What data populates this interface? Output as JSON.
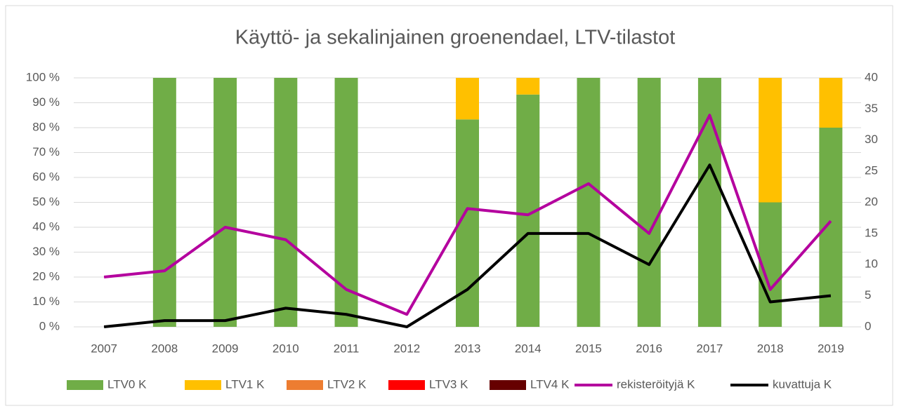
{
  "chart_data": {
    "type": "bar",
    "title": "Käyttö- ja sekalinjainen groenendael, LTV-tilastot",
    "categories": [
      "2007",
      "2008",
      "2009",
      "2010",
      "2011",
      "2012",
      "2013",
      "2014",
      "2015",
      "2016",
      "2017",
      "2018",
      "2019"
    ],
    "series": [
      {
        "name": "LTV0 K",
        "color": "#70ad47",
        "values": [
          0,
          100,
          100,
          100,
          100,
          0,
          83.3,
          93.3,
          100,
          100,
          100,
          50,
          80
        ]
      },
      {
        "name": "LTV1 K",
        "color": "#ffc000",
        "values": [
          0,
          0,
          0,
          0,
          0,
          0,
          16.7,
          6.7,
          0,
          0,
          0,
          50,
          20
        ]
      },
      {
        "name": "LTV2 K",
        "color": "#ed7d31",
        "values": [
          0,
          0,
          0,
          0,
          0,
          0,
          0,
          0,
          0,
          0,
          0,
          0,
          0
        ]
      },
      {
        "name": "LTV3 K",
        "color": "#ff0000",
        "values": [
          0,
          0,
          0,
          0,
          0,
          0,
          0,
          0,
          0,
          0,
          0,
          0,
          0
        ]
      },
      {
        "name": "LTV4 K",
        "color": "#660000",
        "values": [
          0,
          0,
          0,
          0,
          0,
          0,
          0,
          0,
          0,
          0,
          0,
          0,
          0
        ]
      },
      {
        "name": "rekisteröityjä K",
        "color": "#b4009e",
        "axis": "y2",
        "values": [
          8,
          9,
          16,
          14,
          6,
          2,
          19,
          18,
          23,
          15,
          34,
          6,
          17
        ]
      },
      {
        "name": "kuvattuja K",
        "color": "#000000",
        "axis": "y2",
        "values": [
          0,
          1,
          1,
          3,
          2,
          0,
          6,
          15,
          15,
          10,
          26,
          4,
          5
        ]
      }
    ],
    "ylim": [
      0,
      100
    ],
    "yticks": [
      {
        "value": 0,
        "label": "0 %"
      },
      {
        "value": 10,
        "label": "10 %"
      },
      {
        "value": 20,
        "label": "20 %"
      },
      {
        "value": 30,
        "label": "30 %"
      },
      {
        "value": 40,
        "label": "40 %"
      },
      {
        "value": 50,
        "label": "50 %"
      },
      {
        "value": 60,
        "label": "60 %"
      },
      {
        "value": 70,
        "label": "70 %"
      },
      {
        "value": 80,
        "label": "80 %"
      },
      {
        "value": 90,
        "label": "90 %"
      },
      {
        "value": 100,
        "label": "100 %"
      }
    ],
    "y2lim": [
      0,
      40
    ],
    "y2ticks": [
      0,
      5,
      10,
      15,
      20,
      25,
      30,
      35,
      40
    ],
    "grid": true,
    "legend": "bottom"
  }
}
